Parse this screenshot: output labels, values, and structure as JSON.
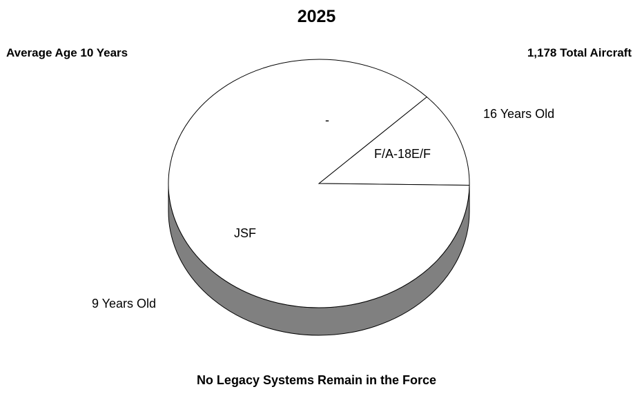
{
  "chart_data": {
    "type": "pie",
    "style": "3d",
    "title": "2025",
    "subtitle_left": "Average Age 10 Years",
    "subtitle_right": "1,178 Total Aircraft",
    "footnote": "No Legacy Systems Remain in the Force",
    "slices": [
      {
        "label": "F/A-18E/F",
        "share": 0.125,
        "age_label": "16 Years Old",
        "fill": "#ffffff"
      },
      {
        "label": "JSF",
        "share": 0.875,
        "age_label": "9 Years Old",
        "fill": "#ffffff"
      }
    ],
    "stray_label": "-",
    "colors": {
      "pie_top": "#ffffff",
      "pie_side": "#808080",
      "outline": "#000000"
    }
  }
}
